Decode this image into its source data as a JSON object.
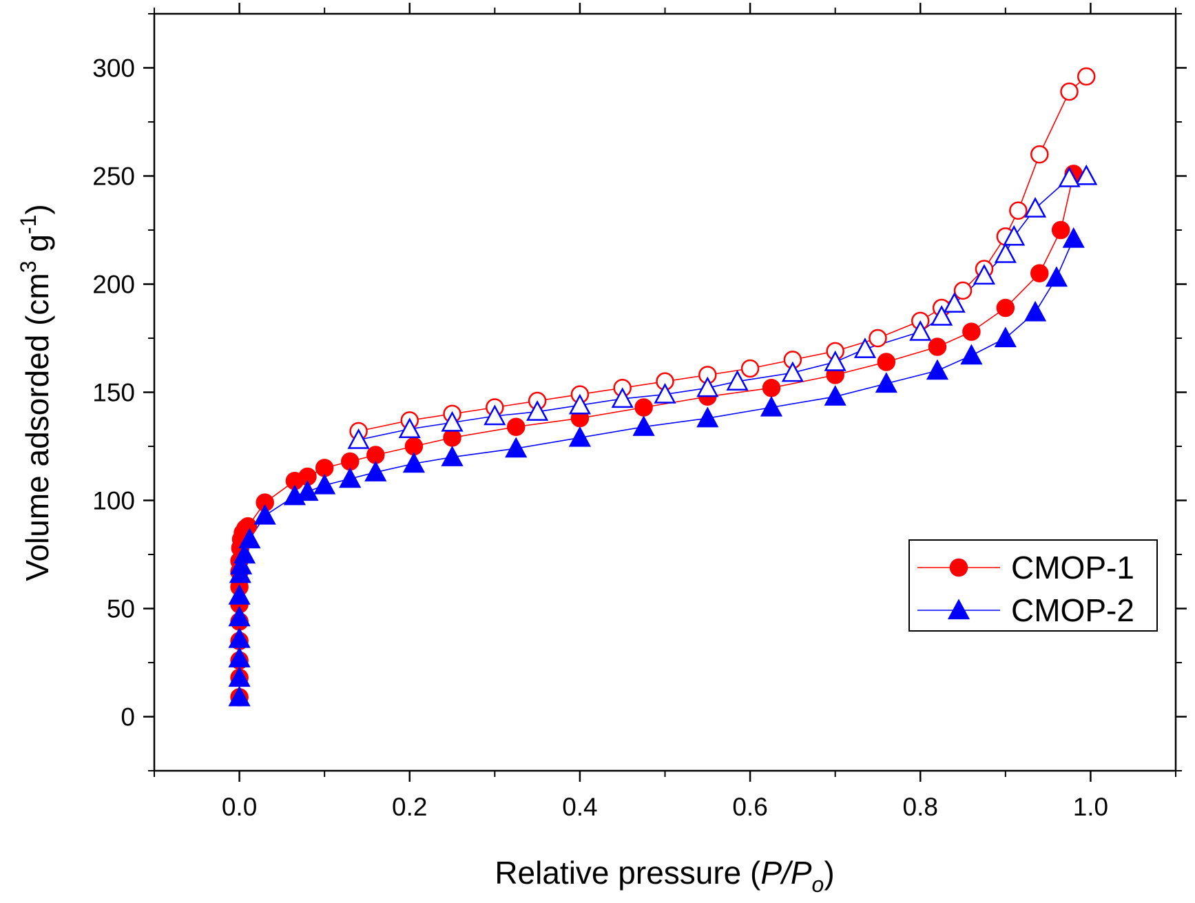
{
  "chart_data": {
    "type": "scatter",
    "title": "",
    "xlabel": {
      "prefix": "Relative pressure (",
      "italic": "P/P",
      "sub": "o",
      "suffix": ")"
    },
    "ylabel": {
      "prefix": "Volume adsorded (cm",
      "sup1": "3",
      "mid": " g",
      "sup2": "-1",
      "suffix": ")"
    },
    "xlim": [
      -0.1,
      1.1
    ],
    "ylim": [
      -25,
      325
    ],
    "xticks": [
      0.0,
      0.2,
      0.4,
      0.6,
      0.8,
      1.0
    ],
    "xtick_labels": [
      "0.0",
      "0.2",
      "0.4",
      "0.6",
      "0.8",
      "1.0"
    ],
    "yticks": [
      0,
      50,
      100,
      150,
      200,
      250,
      300
    ],
    "ytick_labels": [
      "0",
      "50",
      "100",
      "150",
      "200",
      "250",
      "300"
    ],
    "grid": false,
    "legend_position": "right",
    "series": [
      {
        "name": "CMOP-1",
        "branch": "adsorption",
        "color": "#ff0000",
        "marker": "circle",
        "filled": true,
        "x": [
          0.0,
          0.0,
          0.0,
          0.0,
          0.0,
          0.0,
          0.0,
          0.0,
          0.0,
          0.001,
          0.002,
          0.004,
          0.007,
          0.01,
          0.03,
          0.065,
          0.08,
          0.1,
          0.13,
          0.16,
          0.205,
          0.25,
          0.325,
          0.4,
          0.475,
          0.55,
          0.625,
          0.7,
          0.76,
          0.82,
          0.86,
          0.9,
          0.94,
          0.965,
          0.98
        ],
        "y": [
          9,
          18,
          26,
          35,
          44,
          52,
          60,
          67,
          72,
          78,
          82,
          85,
          87,
          88,
          99,
          109,
          111,
          115,
          118,
          121,
          125,
          129,
          134,
          138,
          143,
          148,
          152,
          158,
          164,
          171,
          178,
          189,
          205,
          225,
          251
        ]
      },
      {
        "name": "CMOP-1",
        "branch": "desorption",
        "color": "#ff0000",
        "marker": "circle",
        "filled": false,
        "x": [
          0.995,
          0.975,
          0.94,
          0.915,
          0.9,
          0.875,
          0.85,
          0.825,
          0.8,
          0.75,
          0.7,
          0.65,
          0.6,
          0.55,
          0.5,
          0.45,
          0.4,
          0.35,
          0.3,
          0.25,
          0.2,
          0.14
        ],
        "y": [
          296,
          289,
          260,
          234,
          222,
          207,
          197,
          189,
          183,
          175,
          169,
          165,
          161,
          158,
          155,
          152,
          149,
          146,
          143,
          140,
          137,
          132
        ]
      },
      {
        "name": "CMOP-2",
        "branch": "adsorption",
        "color": "#0000ff",
        "marker": "triangle",
        "filled": true,
        "x": [
          0.0,
          0.0,
          0.0,
          0.0,
          0.0,
          0.0,
          0.001,
          0.002,
          0.006,
          0.012,
          0.03,
          0.065,
          0.08,
          0.1,
          0.13,
          0.16,
          0.205,
          0.25,
          0.325,
          0.4,
          0.475,
          0.55,
          0.625,
          0.7,
          0.76,
          0.82,
          0.86,
          0.9,
          0.935,
          0.96,
          0.98
        ],
        "y": [
          9,
          18,
          27,
          36,
          46,
          56,
          66,
          70,
          75,
          82,
          93,
          102,
          104,
          107,
          110,
          113,
          117,
          120,
          124,
          129,
          134,
          138,
          143,
          148,
          154,
          160,
          167,
          175,
          187,
          203,
          221
        ]
      },
      {
        "name": "CMOP-2",
        "branch": "desorption",
        "color": "#0000ff",
        "marker": "triangle",
        "filled": false,
        "x": [
          0.995,
          0.975,
          0.935,
          0.91,
          0.9,
          0.875,
          0.84,
          0.825,
          0.8,
          0.735,
          0.7,
          0.65,
          0.585,
          0.55,
          0.5,
          0.45,
          0.4,
          0.35,
          0.3,
          0.25,
          0.2,
          0.14
        ],
        "y": [
          250,
          249,
          235,
          222,
          214,
          204,
          191,
          185,
          178,
          170,
          164,
          159,
          155,
          152,
          149,
          147,
          144,
          141,
          139,
          136,
          133,
          128
        ]
      }
    ],
    "legend": [
      {
        "label": "CMOP-1",
        "color": "#ff0000",
        "marker": "circle"
      },
      {
        "label": "CMOP-2",
        "color": "#0000ff",
        "marker": "triangle"
      }
    ]
  }
}
